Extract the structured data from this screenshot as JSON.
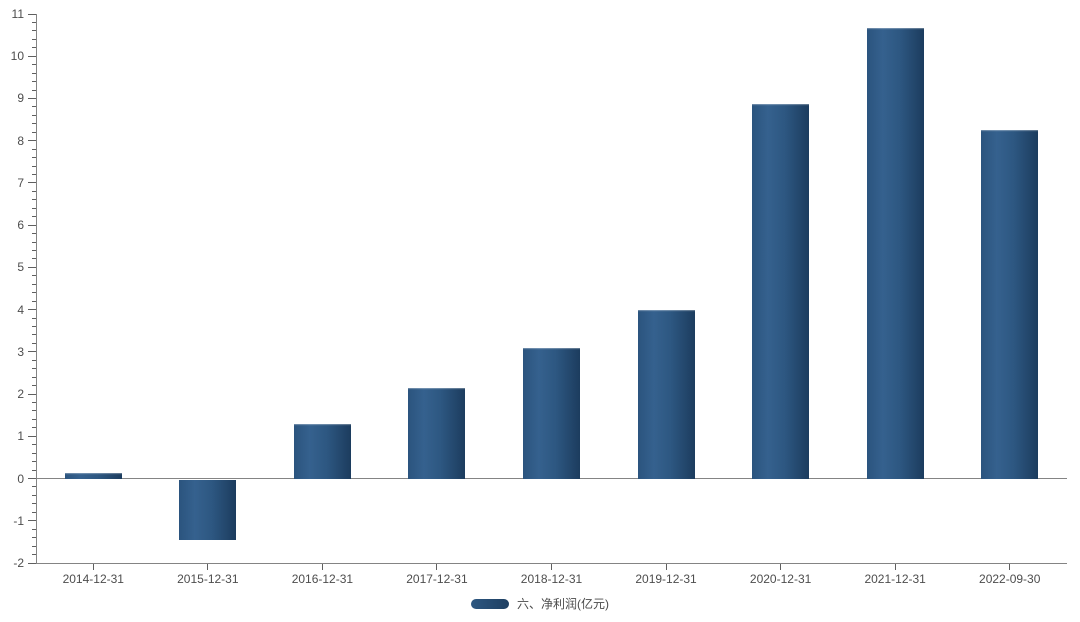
{
  "chart_data": {
    "type": "bar",
    "title": "",
    "xlabel": "",
    "ylabel": "",
    "categories": [
      "2014-12-31",
      "2015-12-31",
      "2016-12-31",
      "2017-12-31",
      "2018-12-31",
      "2019-12-31",
      "2020-12-31",
      "2021-12-31",
      "2022-09-30"
    ],
    "series": [
      {
        "name": "六、净利润(亿元)",
        "values": [
          0.14,
          -1.45,
          1.3,
          2.15,
          3.1,
          4.0,
          8.88,
          10.68,
          8.25
        ]
      }
    ],
    "ylim": [
      -2,
      11
    ],
    "y_major_step": 1,
    "y_minor_step": 0.2,
    "y_tick_labels": [
      "-2",
      "-1",
      "0",
      "1",
      "2",
      "3",
      "4",
      "5",
      "6",
      "7",
      "8",
      "9",
      "10",
      "11"
    ],
    "grid": false,
    "legend": {
      "position": "bottom",
      "entries": [
        "六、净利润(亿元)"
      ]
    },
    "colors": {
      "bar_gradient_left": "#2b547e",
      "bar_gradient_mid": "#35618e",
      "bar_gradient_right": "#1c3c5e",
      "axis_line": "#848484",
      "tick": "#5f5f5f",
      "label_text": "#4d4d4d",
      "background": "#ffffff"
    }
  }
}
